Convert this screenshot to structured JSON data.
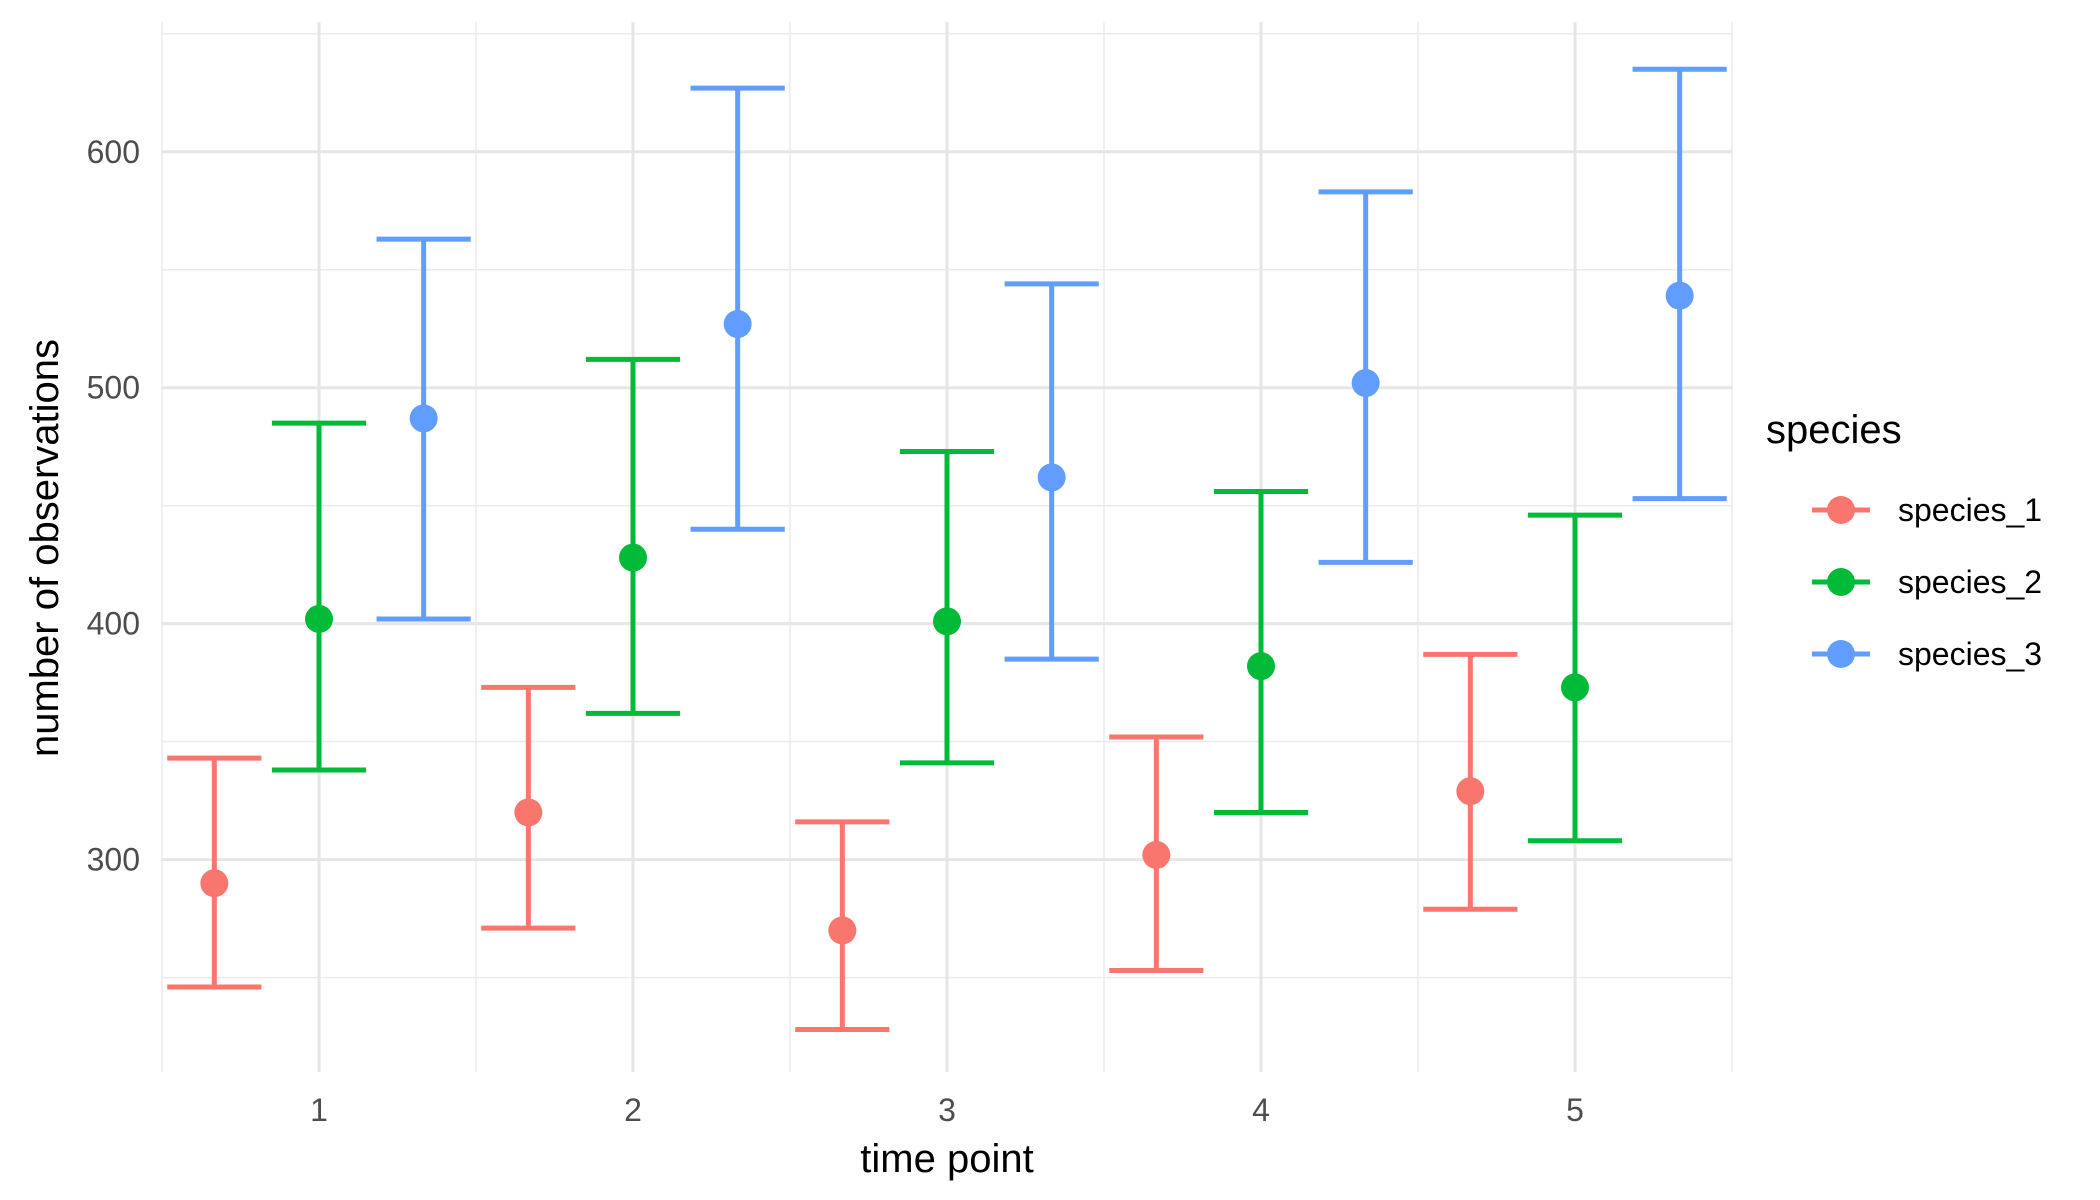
{
  "chart_data": {
    "type": "scatter",
    "subtype": "point-with-errorbars",
    "title": "",
    "xlabel": "time point",
    "ylabel": "number of observations",
    "x": [
      1,
      2,
      3,
      4,
      5
    ],
    "x_tick_labels": [
      "1",
      "2",
      "3",
      "4",
      "5"
    ],
    "y_tick_labels": [
      "300",
      "400",
      "500",
      "600"
    ],
    "xlim": [
      0.5,
      5.5
    ],
    "ylim": [
      210,
      655
    ],
    "grid": true,
    "legend": {
      "title": "species",
      "position": "right"
    },
    "series": [
      {
        "name": "species_1",
        "color": "#F8766D",
        "values": [
          290,
          320,
          270,
          302,
          329
        ],
        "lower": [
          246,
          271,
          228,
          253,
          279
        ],
        "upper": [
          343,
          373,
          316,
          352,
          387
        ]
      },
      {
        "name": "species_2",
        "color": "#00BA38",
        "values": [
          402,
          428,
          401,
          382,
          373
        ],
        "lower": [
          338,
          362,
          341,
          320,
          308
        ],
        "upper": [
          485,
          512,
          473,
          456,
          446
        ]
      },
      {
        "name": "species_3",
        "color": "#619CFF",
        "values": [
          487,
          527,
          462,
          502,
          539
        ],
        "lower": [
          402,
          440,
          385,
          426,
          453
        ],
        "upper": [
          563,
          627,
          544,
          583,
          635
        ]
      }
    ]
  }
}
